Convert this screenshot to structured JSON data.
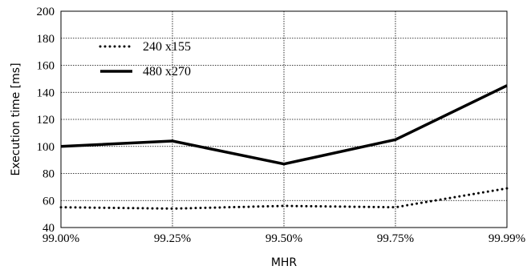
{
  "chart_data": {
    "type": "line",
    "categories": [
      "99.00%",
      "99.25%",
      "99.50%",
      "99.75%",
      "99.99%"
    ],
    "series": [
      {
        "name": "240 x155",
        "values": [
          55,
          54,
          56,
          55,
          69
        ],
        "style": "dotted",
        "color": "#000000"
      },
      {
        "name": "480 x270",
        "values": [
          100,
          104,
          87,
          105,
          145
        ],
        "style": "solid",
        "color": "#000000"
      }
    ],
    "xlabel": "MHR",
    "ylabel": "Execution time [ms]",
    "ylim": [
      40,
      200
    ],
    "yticks": [
      40,
      60,
      80,
      100,
      120,
      140,
      160,
      180,
      200
    ],
    "grid": true,
    "legend_position": "top-left"
  }
}
